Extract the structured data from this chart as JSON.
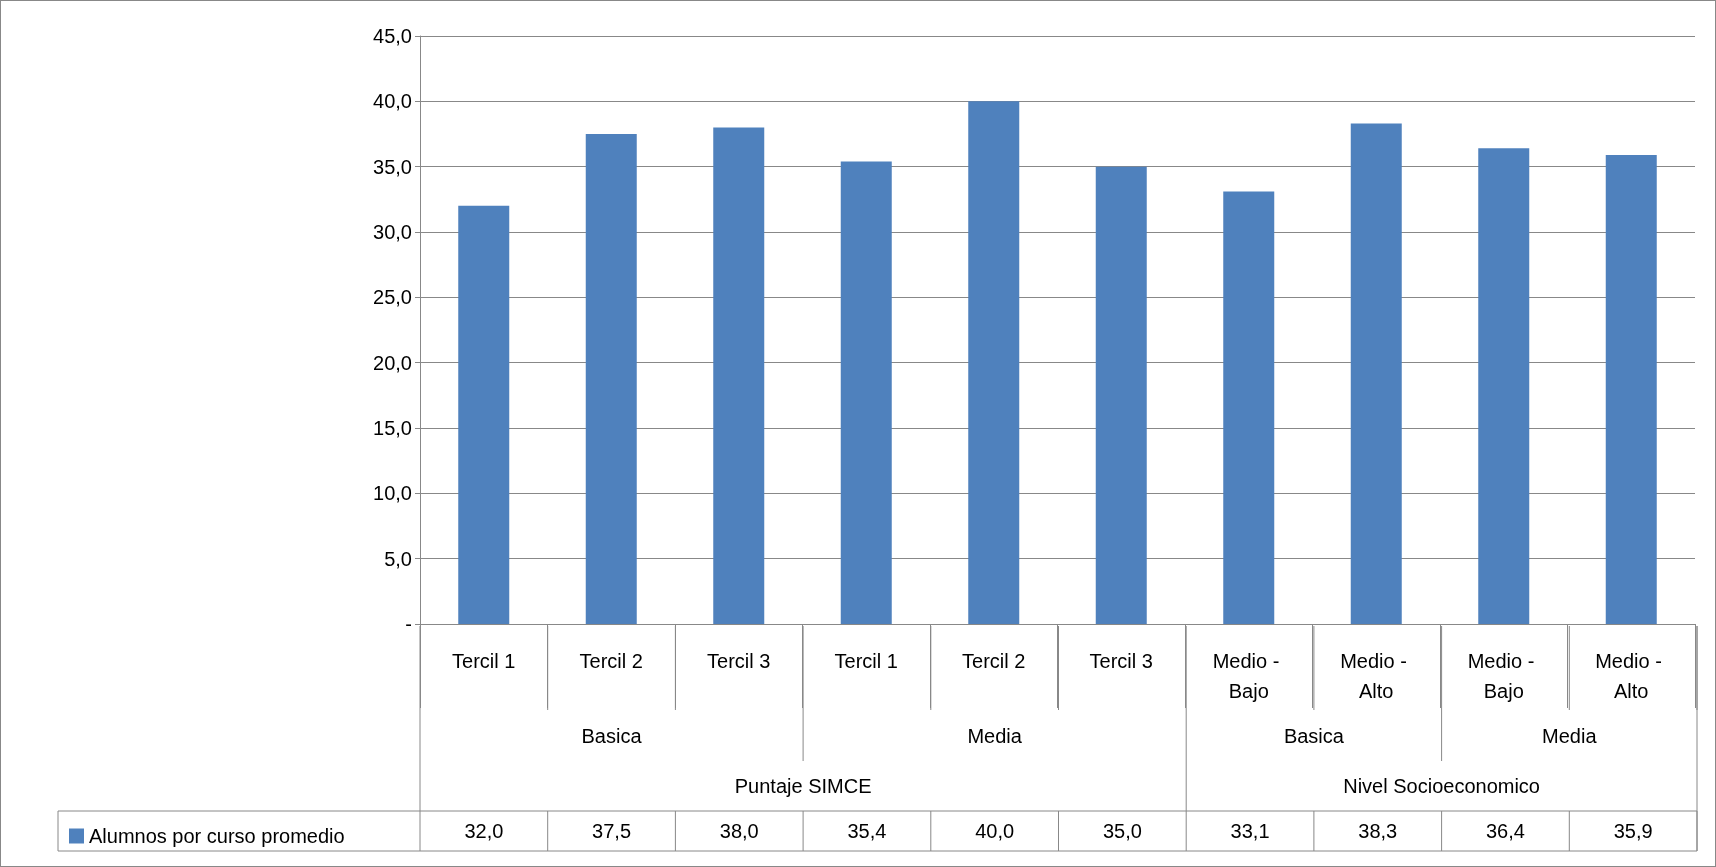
{
  "chart_data": {
    "type": "bar",
    "categories": [
      "Tercil 1",
      "Tercil 2",
      "Tercil 3",
      "Tercil 1",
      "Tercil 2",
      "Tercil 3",
      "Medio - Bajo",
      "Medio - Alto",
      "Medio - Bajo",
      "Medio - Alto"
    ],
    "series": [
      {
        "name": "Alumnos por curso promedio",
        "color": "#4f81bd",
        "values": [
          32.0,
          37.5,
          38.0,
          35.4,
          40.0,
          35.0,
          33.1,
          38.3,
          36.4,
          35.9
        ],
        "value_labels": [
          "32,0",
          "37,5",
          "38,0",
          "35,4",
          "40,0",
          "35,0",
          "33,1",
          "38,3",
          "36,4",
          "35,9"
        ]
      }
    ],
    "ylim": [
      0,
      45
    ],
    "yticks": [
      {
        "value": 0,
        "label": "-"
      },
      {
        "value": 5,
        "label": "5,0"
      },
      {
        "value": 10,
        "label": "10,0"
      },
      {
        "value": 15,
        "label": "15,0"
      },
      {
        "value": 20,
        "label": "20,0"
      },
      {
        "value": 25,
        "label": "25,0"
      },
      {
        "value": 30,
        "label": "30,0"
      },
      {
        "value": 35,
        "label": "35,0"
      },
      {
        "value": 40,
        "label": "40,0"
      },
      {
        "value": 45,
        "label": "45,0"
      }
    ],
    "annotations": [
      "Basica",
      "Media",
      "Basica",
      "Media",
      "Puntaje SIMCE",
      "Nivel Socioeconomico"
    ],
    "grid": "y",
    "legend": "bottom left"
  }
}
